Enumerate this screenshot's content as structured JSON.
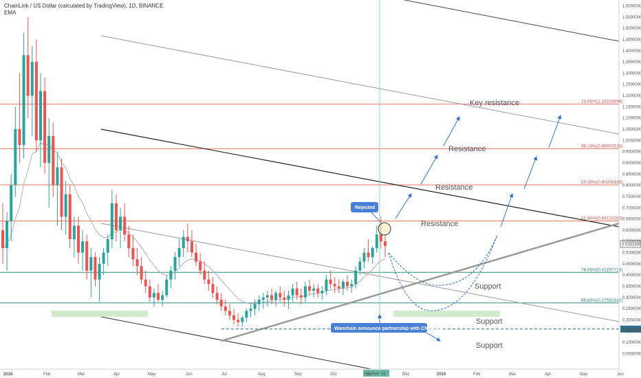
{
  "header": {
    "title": "ChainLink / US Dollar (calculated by TradingView), 1D, BINANCE",
    "indicator": "EMA"
  },
  "chart_data": {
    "type": "candlestick",
    "x_ticks": [
      "2018",
      "Feb",
      "Mar",
      "Apr",
      "May",
      "Jun",
      "Jul",
      "Aug",
      "Sep",
      "Oct",
      "Nov",
      "Dec",
      "2019",
      "Feb",
      "Mar",
      "Apr",
      "May",
      "Jun"
    ],
    "y_ticks": [
      "1.60000000",
      "1.55000000",
      "1.50000000",
      "1.45000000",
      "1.40000000",
      "1.35000000",
      "1.30000000",
      "1.25000000",
      "1.20000000",
      "1.15000000",
      "1.10000000",
      "1.05000000",
      "1.00000000",
      "0.95000000",
      "0.90000000",
      "0.85000000",
      "0.80000000",
      "0.75000000",
      "0.70000000",
      "0.65000000",
      "0.60000000",
      "0.55000000",
      "0.50000000",
      "0.45000000",
      "0.40000000",
      "0.35000000",
      "0.30000000",
      "0.25000000",
      "0.20000000",
      "0.15000000",
      "0.10000000",
      "0.05000000"
    ],
    "ylim": [
      0.02,
      1.62
    ],
    "current_price_label": "0.53833854",
    "support_price_label": "0.15915569",
    "cursor_date_label": "10 Nov '18",
    "fib_levels": [
      {
        "label": "23.60%(1.16218096)",
        "value": 1.16218096,
        "color": "#e57368"
      },
      {
        "label": "38.20%(0.96302533)",
        "value": 0.96302533,
        "color": "#e57368"
      },
      {
        "label": "50.00%(0.80206393)",
        "value": 0.80206393,
        "color": "#e57368"
      },
      {
        "label": "61.80%(0.64110252)",
        "value": 0.64110252,
        "color": "#e57368"
      },
      {
        "label": "78.60%(0.41197714)",
        "value": 0.41197714,
        "color": "#2e8b7a"
      },
      {
        "label": "88.60%(0.27552912)",
        "value": 0.27552912,
        "color": "#2e8b7a"
      }
    ],
    "annotations": {
      "key_resistance": "Key resistance",
      "resistance": "Resistance",
      "support": "Support",
      "rejected": "Rejected",
      "wanchain": "Wanchain announce partnership with Chainlink"
    },
    "candles": [
      [
        0.6,
        0.72,
        0.45,
        0.52
      ],
      [
        0.52,
        0.68,
        0.42,
        0.64
      ],
      [
        0.64,
        0.85,
        0.55,
        0.8
      ],
      [
        0.8,
        1.15,
        0.75,
        1.05
      ],
      [
        1.05,
        1.3,
        0.9,
        0.98
      ],
      [
        0.98,
        1.48,
        0.92,
        1.38
      ],
      [
        1.38,
        1.55,
        1.1,
        1.2
      ],
      [
        1.2,
        1.42,
        1.02,
        1.35
      ],
      [
        1.35,
        1.45,
        0.95,
        1.0
      ],
      [
        1.0,
        1.3,
        0.88,
        1.22
      ],
      [
        1.22,
        1.28,
        0.85,
        0.9
      ],
      [
        0.9,
        1.1,
        0.7,
        1.02
      ],
      [
        1.02,
        1.08,
        0.75,
        0.8
      ],
      [
        0.8,
        0.95,
        0.62,
        0.88
      ],
      [
        0.88,
        0.92,
        0.6,
        0.66
      ],
      [
        0.66,
        0.82,
        0.58,
        0.76
      ],
      [
        0.76,
        0.8,
        0.52,
        0.56
      ],
      [
        0.56,
        0.66,
        0.48,
        0.62
      ],
      [
        0.62,
        0.66,
        0.45,
        0.5
      ],
      [
        0.5,
        0.6,
        0.42,
        0.55
      ],
      [
        0.55,
        0.58,
        0.38,
        0.42
      ],
      [
        0.42,
        0.52,
        0.3,
        0.48
      ],
      [
        0.48,
        0.5,
        0.35,
        0.38
      ],
      [
        0.38,
        0.48,
        0.28,
        0.45
      ],
      [
        0.45,
        0.52,
        0.4,
        0.5
      ],
      [
        0.5,
        0.58,
        0.44,
        0.56
      ],
      [
        0.56,
        0.78,
        0.52,
        0.72
      ],
      [
        0.72,
        0.76,
        0.55,
        0.6
      ],
      [
        0.6,
        0.7,
        0.52,
        0.66
      ],
      [
        0.66,
        0.72,
        0.55,
        0.58
      ],
      [
        0.58,
        0.62,
        0.48,
        0.52
      ],
      [
        0.52,
        0.58,
        0.44,
        0.47
      ],
      [
        0.47,
        0.52,
        0.4,
        0.44
      ],
      [
        0.44,
        0.48,
        0.36,
        0.38
      ],
      [
        0.38,
        0.42,
        0.32,
        0.35
      ],
      [
        0.35,
        0.38,
        0.28,
        0.3
      ],
      [
        0.3,
        0.34,
        0.26,
        0.32
      ],
      [
        0.32,
        0.36,
        0.28,
        0.29
      ],
      [
        0.29,
        0.33,
        0.26,
        0.31
      ],
      [
        0.31,
        0.4,
        0.3,
        0.38
      ],
      [
        0.38,
        0.44,
        0.34,
        0.42
      ],
      [
        0.42,
        0.5,
        0.38,
        0.48
      ],
      [
        0.48,
        0.56,
        0.44,
        0.52
      ],
      [
        0.52,
        0.6,
        0.48,
        0.57
      ],
      [
        0.57,
        0.63,
        0.5,
        0.55
      ],
      [
        0.55,
        0.6,
        0.48,
        0.5
      ],
      [
        0.5,
        0.54,
        0.44,
        0.46
      ],
      [
        0.46,
        0.5,
        0.4,
        0.42
      ],
      [
        0.42,
        0.46,
        0.36,
        0.38
      ],
      [
        0.38,
        0.42,
        0.33,
        0.36
      ],
      [
        0.36,
        0.39,
        0.3,
        0.32
      ],
      [
        0.32,
        0.35,
        0.27,
        0.29
      ],
      [
        0.29,
        0.32,
        0.24,
        0.26
      ],
      [
        0.26,
        0.29,
        0.22,
        0.24
      ],
      [
        0.24,
        0.27,
        0.2,
        0.22
      ],
      [
        0.22,
        0.25,
        0.18,
        0.2
      ],
      [
        0.2,
        0.23,
        0.17,
        0.19
      ],
      [
        0.19,
        0.22,
        0.17,
        0.21
      ],
      [
        0.21,
        0.25,
        0.19,
        0.24
      ],
      [
        0.24,
        0.27,
        0.21,
        0.25
      ],
      [
        0.25,
        0.29,
        0.22,
        0.27
      ],
      [
        0.27,
        0.31,
        0.24,
        0.29
      ],
      [
        0.29,
        0.32,
        0.25,
        0.3
      ],
      [
        0.3,
        0.33,
        0.26,
        0.31
      ],
      [
        0.31,
        0.34,
        0.27,
        0.29
      ],
      [
        0.29,
        0.33,
        0.26,
        0.32
      ],
      [
        0.32,
        0.35,
        0.28,
        0.3
      ],
      [
        0.3,
        0.33,
        0.26,
        0.29
      ],
      [
        0.29,
        0.33,
        0.25,
        0.31
      ],
      [
        0.31,
        0.36,
        0.28,
        0.34
      ],
      [
        0.34,
        0.37,
        0.29,
        0.31
      ],
      [
        0.31,
        0.34,
        0.27,
        0.3
      ],
      [
        0.3,
        0.37,
        0.28,
        0.35
      ],
      [
        0.35,
        0.38,
        0.31,
        0.33
      ],
      [
        0.33,
        0.36,
        0.3,
        0.34
      ],
      [
        0.34,
        0.36,
        0.3,
        0.32
      ],
      [
        0.32,
        0.35,
        0.29,
        0.33
      ],
      [
        0.33,
        0.4,
        0.31,
        0.38
      ],
      [
        0.38,
        0.42,
        0.34,
        0.36
      ],
      [
        0.36,
        0.39,
        0.32,
        0.35
      ],
      [
        0.35,
        0.38,
        0.32,
        0.34
      ],
      [
        0.34,
        0.38,
        0.31,
        0.37
      ],
      [
        0.37,
        0.4,
        0.33,
        0.35
      ],
      [
        0.35,
        0.38,
        0.32,
        0.36
      ],
      [
        0.36,
        0.44,
        0.34,
        0.42
      ],
      [
        0.42,
        0.48,
        0.4,
        0.46
      ],
      [
        0.46,
        0.52,
        0.43,
        0.5
      ],
      [
        0.5,
        0.56,
        0.46,
        0.48
      ],
      [
        0.48,
        0.53,
        0.45,
        0.52
      ],
      [
        0.52,
        0.62,
        0.5,
        0.58
      ],
      [
        0.58,
        0.66,
        0.52,
        0.55
      ],
      [
        0.55,
        0.58,
        0.48,
        0.53
      ]
    ]
  }
}
